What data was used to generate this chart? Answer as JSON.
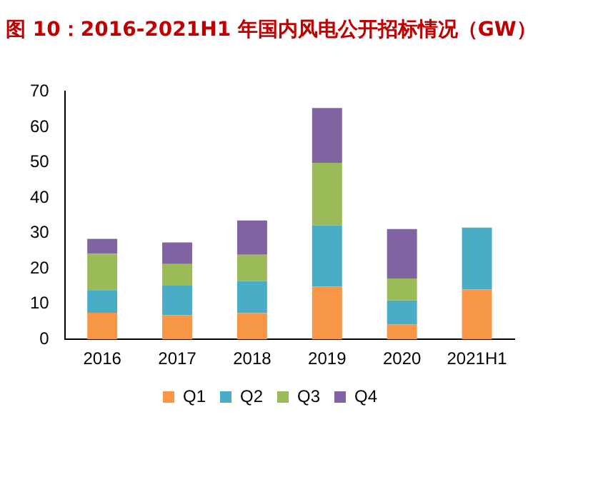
{
  "chart_data": {
    "type": "bar",
    "title": "图 10：2016-2021H1 年国内风电公开招标情况（GW）",
    "categories": [
      "2016",
      "2017",
      "2018",
      "2019",
      "2020",
      "2021H1"
    ],
    "stacked": true,
    "ylim": [
      0,
      70
    ],
    "yticks": [
      0,
      10,
      20,
      30,
      40,
      50,
      60,
      70
    ],
    "grid": false,
    "legend": "bottom",
    "series": [
      {
        "name": "Q1",
        "color": "#f79646",
        "values": [
          7.5,
          6.8,
          7.4,
          14.9,
          4.2,
          14.1
        ]
      },
      {
        "name": "Q2",
        "color": "#4bacc6",
        "values": [
          6.4,
          8.4,
          9.1,
          17.3,
          6.8,
          17.5
        ]
      },
      {
        "name": "Q3",
        "color": "#9bbb59",
        "values": [
          10.3,
          6.1,
          7.4,
          17.7,
          6.2,
          null
        ]
      },
      {
        "name": "Q4",
        "color": "#8064a2",
        "values": [
          4.2,
          6.1,
          9.7,
          15.5,
          14.0,
          null
        ]
      }
    ]
  }
}
